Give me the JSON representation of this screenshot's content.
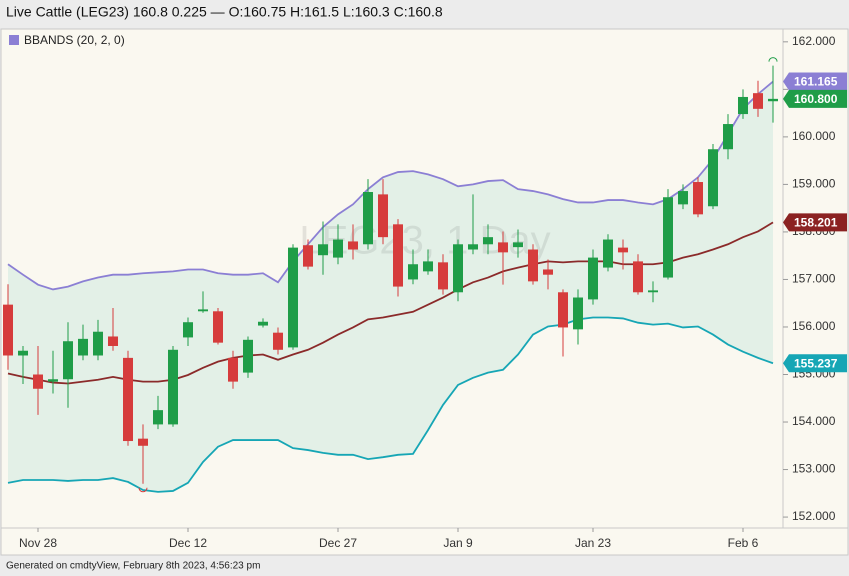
{
  "chart_data": {
    "type": "candlestick",
    "title": "Live Cattle (LEG23) 160.8 0.225 — O:160.75 H:161.5 L:160.3 C:160.8",
    "watermark": "LEG23, 1 Day",
    "legend": {
      "label": "BBANDS (20, 2, 0)",
      "color": "#8b7fd4"
    },
    "footer": "Generated on cmdtyView, February 8th 2023, 4:56:23 pm",
    "categories": [
      null,
      null,
      "Nov 28",
      null,
      null,
      null,
      null,
      null,
      null,
      null,
      null,
      null,
      "Dec 12",
      null,
      null,
      null,
      null,
      null,
      null,
      null,
      null,
      null,
      "Dec 27",
      null,
      null,
      null,
      null,
      null,
      null,
      null,
      "Jan 9",
      null,
      null,
      null,
      null,
      null,
      null,
      null,
      null,
      "Jan 23",
      null,
      null,
      null,
      null,
      null,
      null,
      null,
      null,
      null,
      "Feb 6",
      null,
      null
    ],
    "open": [
      156.47,
      155.4,
      155.0,
      154.85,
      154.9,
      155.4,
      155.4,
      155.8,
      155.35,
      153.65,
      153.95,
      153.95,
      155.78,
      156.33,
      156.33,
      155.35,
      155.04,
      156.03,
      155.88,
      155.57,
      157.72,
      157.51,
      157.46,
      157.8,
      157.74,
      158.79,
      158.16,
      157.0,
      157.17,
      157.36,
      156.73,
      157.63,
      157.74,
      157.78,
      157.68,
      157.63,
      157.21,
      156.73,
      155.95,
      156.58,
      157.25,
      157.67,
      157.38,
      156.73,
      157.04,
      158.58,
      159.05,
      158.54,
      159.74,
      160.48,
      160.92,
      160.75
    ],
    "high": [
      156.9,
      155.6,
      155.6,
      155.5,
      156.1,
      156.05,
      156.15,
      156.4,
      155.5,
      153.95,
      154.55,
      155.6,
      156.2,
      156.75,
      156.4,
      155.5,
      155.8,
      156.18,
      155.99,
      157.74,
      157.84,
      158.22,
      158.16,
      158.16,
      159.11,
      159.11,
      158.27,
      157.63,
      157.63,
      157.53,
      157.84,
      158.79,
      158.16,
      158.01,
      158.05,
      157.74,
      157.42,
      156.79,
      156.79,
      157.63,
      157.95,
      157.84,
      157.53,
      156.96,
      158.9,
      159.0,
      159.15,
      159.85,
      160.48,
      161.0,
      161.18,
      161.5
    ],
    "low": [
      155.1,
      154.8,
      154.15,
      154.6,
      154.3,
      155.3,
      155.3,
      155.5,
      153.5,
      152.7,
      153.85,
      153.9,
      155.6,
      156.3,
      155.63,
      154.7,
      154.93,
      155.99,
      155.42,
      155.52,
      157.21,
      157.1,
      157.32,
      157.42,
      157.63,
      157.74,
      156.64,
      156.9,
      157.1,
      156.68,
      156.54,
      157.53,
      157.53,
      156.89,
      157.46,
      156.89,
      156.79,
      155.38,
      155.63,
      156.47,
      157.17,
      157.21,
      156.68,
      156.52,
      157.0,
      158.48,
      158.31,
      158.48,
      159.53,
      160.38,
      160.42,
      160.3
    ],
    "close": [
      155.4,
      155.5,
      154.7,
      154.9,
      155.7,
      155.75,
      155.9,
      155.6,
      153.6,
      153.5,
      154.25,
      155.52,
      156.1,
      156.37,
      155.67,
      154.85,
      155.73,
      156.11,
      155.52,
      157.67,
      157.27,
      157.74,
      157.84,
      157.63,
      158.84,
      157.89,
      156.85,
      157.32,
      157.38,
      156.79,
      157.74,
      157.74,
      157.89,
      157.57,
      157.78,
      156.96,
      157.1,
      155.99,
      156.62,
      157.46,
      157.84,
      157.57,
      156.73,
      156.77,
      158.73,
      158.86,
      158.37,
      159.74,
      160.27,
      160.84,
      160.59,
      160.8
    ],
    "up_color": "#1f9d48",
    "down_color": "#d63c3c",
    "overlays": [
      {
        "color": "#8b7fd4",
        "values": [
          157.32,
          157.1,
          156.89,
          156.79,
          156.85,
          156.96,
          157.04,
          157.1,
          157.1,
          157.13,
          157.15,
          157.17,
          157.21,
          157.21,
          157.13,
          157.1,
          157.1,
          157.13,
          156.94,
          157.38,
          157.74,
          158.1,
          158.37,
          158.58,
          158.9,
          159.15,
          159.26,
          159.28,
          159.21,
          159.11,
          158.96,
          159.0,
          159.07,
          159.09,
          158.9,
          158.86,
          158.79,
          158.69,
          158.62,
          158.62,
          158.67,
          158.67,
          158.62,
          158.58,
          158.69,
          158.9,
          159.15,
          159.53,
          160.06,
          160.59,
          160.9,
          161.165
        ]
      },
      {
        "color": "#8b2a2a",
        "values": [
          155.02,
          154.95,
          154.89,
          154.83,
          154.81,
          154.85,
          154.89,
          154.95,
          154.89,
          154.85,
          154.85,
          154.89,
          154.99,
          155.14,
          155.27,
          155.35,
          155.4,
          155.42,
          155.31,
          155.42,
          155.52,
          155.67,
          155.84,
          155.99,
          156.16,
          156.2,
          156.26,
          156.32,
          156.47,
          156.62,
          156.79,
          156.94,
          157.04,
          157.17,
          157.25,
          157.32,
          157.38,
          157.36,
          157.38,
          157.38,
          157.38,
          157.32,
          157.32,
          157.32,
          157.36,
          157.46,
          157.53,
          157.63,
          157.74,
          157.89,
          158.01,
          158.201
        ]
      },
      {
        "color": "#16a6b5",
        "values": [
          152.72,
          152.78,
          152.78,
          152.78,
          152.76,
          152.78,
          152.78,
          152.82,
          152.74,
          152.57,
          152.53,
          152.55,
          152.72,
          153.16,
          153.48,
          153.62,
          153.62,
          153.62,
          153.62,
          153.45,
          153.41,
          153.35,
          153.31,
          153.31,
          153.22,
          153.26,
          153.31,
          153.33,
          153.83,
          154.36,
          154.78,
          154.93,
          155.04,
          155.1,
          155.42,
          155.84,
          156.01,
          156.05,
          156.16,
          156.2,
          156.2,
          156.18,
          156.09,
          156.05,
          156.07,
          155.99,
          156.01,
          155.84,
          155.63,
          155.48,
          155.35,
          155.237
        ]
      }
    ],
    "price_tags": [
      {
        "value": 161.165,
        "label": "161.165",
        "color": "#8b7fd4"
      },
      {
        "value": 160.8,
        "label": "160.800",
        "color": "#1f9d48"
      },
      {
        "value": 158.201,
        "label": "158.201",
        "color": "#8b2222"
      },
      {
        "value": 155.237,
        "label": "155.237",
        "color": "#16a6b5"
      }
    ],
    "ylim": [
      151.77,
      162.27
    ],
    "yticks": [
      {
        "value": 152,
        "label": "152.000"
      },
      {
        "value": 153,
        "label": "153.000"
      },
      {
        "value": 154,
        "label": "154.000"
      },
      {
        "value": 155,
        "label": "155.000"
      },
      {
        "value": 156,
        "label": "156.000"
      },
      {
        "value": 157,
        "label": "157.000"
      },
      {
        "value": 158,
        "label": "158.000"
      },
      {
        "value": 159,
        "label": "159.000"
      },
      {
        "value": 160,
        "label": "160.000"
      },
      {
        "value": 161,
        "label": "161.000"
      },
      {
        "value": 162,
        "label": "162.000"
      }
    ]
  }
}
